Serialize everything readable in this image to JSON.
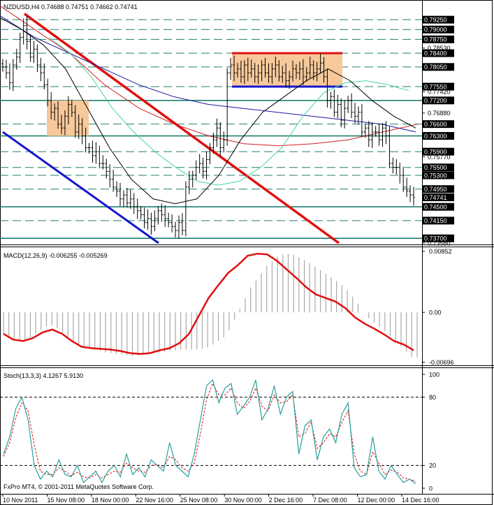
{
  "header": {
    "symbol_text": "NZDUSD,H4  0.74688 0.74751 0.74662 0.74741",
    "macd_text": "MACD(12,26,9) -0.006255 -0.005269",
    "stoch_text": "Stoch(13,3,3) 4.1267 5.9130",
    "watermark": "FxPro MT4, © 2001-2011 MetaQuotes Software Corp."
  },
  "colors": {
    "grid": "#1f7f6f",
    "candle": "#000000",
    "channel_red": "#e01010",
    "channel_blue": "#1515d0",
    "box_fill": "#f7c89a",
    "box_red": "#e01010",
    "box_blue": "#1515d0",
    "ma_black": "#000000",
    "ma_green": "#49d49a",
    "ma_red": "#cc2020",
    "ma_navy": "#1a1aa0",
    "macd_hist": "#a8a8a8",
    "macd_signal": "#e01010",
    "stoch_main": "#2a9fa0",
    "stoch_signal": "#e01010",
    "price_box_bg": "#000000",
    "current_price_bg": "#000000"
  },
  "chart_data": [
    {
      "type": "line",
      "x_ticks": [
        "10 Nov 2011",
        "15 Nov 08:00",
        "18 Nov 00:00",
        "22 Nov 16:00",
        "25 Nov 08:00",
        "30 Nov 00:00",
        "2 Dec 16:00",
        "7 Dec 08:00",
        "12 Dec 00:00",
        "14 Dec 16:00"
      ],
      "ylim": [
        0.7358,
        0.7943
      ],
      "level_lines": [
        0.7925,
        0.79,
        0.7875,
        0.784,
        0.7805,
        0.7755,
        0.772,
        0.766,
        0.763,
        0.759,
        0.755,
        0.753,
        0.7495,
        0.745,
        0.7415,
        0.737
      ],
      "level_labels": [
        "0.79250",
        "0.79000",
        "0.78750",
        "0.78400",
        "0.78050",
        "0.77550",
        "0.77200",
        "0.76600",
        "0.76300",
        "0.75900",
        "0.75500",
        "0.75300",
        "0.74950",
        "0.74500",
        "0.74150",
        "0.73700"
      ],
      "axis_labels": [
        "0.78530",
        "0.77420",
        "0.76880",
        "0.75770",
        "0.73580"
      ],
      "axis_values": [
        0.7853,
        0.7742,
        0.7688,
        0.7577,
        0.7358
      ],
      "thick_levels": [
        0.772,
        0.763,
        0.745,
        0.737
      ],
      "current_price": "0.74741",
      "current_value": 0.74741,
      "close": [
        0.7805,
        0.779,
        0.7765,
        0.781,
        0.783,
        0.788,
        0.791,
        0.787,
        0.783,
        0.785,
        0.781,
        0.779,
        0.776,
        0.772,
        0.769,
        0.77,
        0.766,
        0.765,
        0.768,
        0.771,
        0.769,
        0.764,
        0.766,
        0.763,
        0.76,
        0.76,
        0.758,
        0.759,
        0.756,
        0.756,
        0.754,
        0.752,
        0.75,
        0.749,
        0.747,
        0.748,
        0.746,
        0.747,
        0.745,
        0.744,
        0.743,
        0.741,
        0.742,
        0.74,
        0.742,
        0.744,
        0.743,
        0.742,
        0.741,
        0.74,
        0.739,
        0.741,
        0.739,
        0.75,
        0.752,
        0.753,
        0.755,
        0.756,
        0.754,
        0.757,
        0.76,
        0.762,
        0.765,
        0.76,
        0.762,
        0.779,
        0.781,
        0.779,
        0.78,
        0.778,
        0.781,
        0.779,
        0.78,
        0.778,
        0.779,
        0.781,
        0.779,
        0.778,
        0.78,
        0.781,
        0.778,
        0.779,
        0.777,
        0.778,
        0.78,
        0.779,
        0.78,
        0.778,
        0.779,
        0.781,
        0.779,
        0.78,
        0.7815,
        0.778,
        0.772,
        0.773,
        0.769,
        0.771,
        0.767,
        0.77,
        0.772,
        0.769,
        0.768,
        0.769,
        0.764,
        0.765,
        0.762,
        0.764,
        0.764,
        0.762,
        0.765,
        0.763,
        0.756,
        0.755,
        0.755,
        0.753,
        0.75,
        0.749,
        0.748,
        0.7474
      ],
      "ma_black": [
        0.793,
        0.79,
        0.786,
        0.78,
        0.77,
        0.76,
        0.752,
        0.747,
        0.7458,
        0.747,
        0.753,
        0.762,
        0.769,
        0.773,
        0.777,
        0.78,
        0.777,
        0.772,
        0.768,
        0.765
      ],
      "ma_green": [
        0.788,
        0.784,
        0.778,
        0.77,
        0.764,
        0.759,
        0.755,
        0.7515,
        0.7505,
        0.7515,
        0.755,
        0.76,
        0.768,
        0.774,
        0.7765,
        0.777,
        0.776,
        0.7745
      ],
      "ma_red": [
        0.796,
        0.79,
        0.784,
        0.776,
        0.77,
        0.766,
        0.763,
        0.761,
        0.7605,
        0.761,
        0.762,
        0.764,
        0.766
      ],
      "ma_navy": [
        0.7935,
        0.788,
        0.784,
        0.78,
        0.776,
        0.773,
        0.771,
        0.77,
        0.769,
        0.768,
        0.767,
        0.766,
        0.764
      ]
    },
    {
      "type": "bar",
      "title": "MACD(12,26,9)",
      "ylim": [
        -0.0072,
        0.0089
      ],
      "tick_labels": [
        "0.00852",
        "0.00",
        "-0.00696"
      ],
      "tick_values": [
        0.00852,
        0.0,
        -0.00696
      ],
      "histogram": [
        -0.003,
        -0.0035,
        -0.0038,
        -0.004,
        -0.0038,
        -0.0035,
        -0.003,
        -0.0025,
        -0.002,
        -0.0018,
        -0.0022,
        -0.0028,
        -0.0035,
        -0.004,
        -0.0045,
        -0.0048,
        -0.005,
        -0.0052,
        -0.0054,
        -0.0056,
        -0.0057,
        -0.0058,
        -0.0059,
        -0.006,
        -0.0061,
        -0.006,
        -0.0059,
        -0.0058,
        -0.0057,
        -0.0056,
        -0.0055,
        -0.0054,
        -0.0053,
        -0.0052,
        -0.0052,
        -0.0052,
        -0.0052,
        -0.0051,
        -0.0049,
        -0.0045,
        -0.004,
        -0.0035,
        -0.0025,
        -0.001,
        0.0005,
        0.002,
        0.0035,
        0.0045,
        0.0055,
        0.0065,
        0.0072,
        0.0078,
        0.0081,
        0.0082,
        0.008,
        0.0077,
        0.0073,
        0.0069,
        0.0064,
        0.0059,
        0.0054,
        0.0049,
        0.0044,
        0.0038,
        0.0031,
        0.0022,
        0.0012,
        0.0,
        -0.0008,
        -0.0014,
        -0.002,
        -0.0026,
        -0.0033,
        -0.004,
        -0.0048,
        -0.0055,
        -0.0062,
        -0.0063
      ],
      "signal": [
        -0.003,
        -0.0038,
        -0.004,
        -0.0036,
        -0.0028,
        -0.0024,
        -0.003,
        -0.004,
        -0.0048,
        -0.005,
        -0.0051,
        -0.0052,
        -0.0054,
        -0.0057,
        -0.0058,
        -0.0057,
        -0.0053,
        -0.005,
        -0.0043,
        -0.003,
        -0.0005,
        0.002,
        0.0038,
        0.0055,
        0.0066,
        0.0079,
        0.0082,
        0.0081,
        0.0072,
        0.006,
        0.0048,
        0.0035,
        0.0025,
        0.002,
        0.0015,
        0.0006,
        -0.0007,
        -0.0016,
        -0.0023,
        -0.0031,
        -0.004,
        -0.0045,
        -0.0053
      ]
    },
    {
      "type": "line",
      "title": "Stoch(13,3,3)",
      "ylim": [
        0,
        100
      ],
      "tick_labels": [
        "100",
        "80",
        "20",
        "0"
      ],
      "tick_values": [
        100,
        80,
        20,
        0
      ],
      "level_lines": [
        80,
        20
      ],
      "main": [
        30,
        45,
        70,
        80,
        60,
        20,
        8,
        15,
        10,
        25,
        12,
        10,
        20,
        5,
        10,
        15,
        5,
        15,
        20,
        10,
        30,
        12,
        18,
        10,
        25,
        20,
        15,
        40,
        20,
        15,
        10,
        30,
        60,
        90,
        95,
        75,
        88,
        92,
        65,
        72,
        80,
        95,
        60,
        70,
        90,
        65,
        80,
        85,
        30,
        55,
        60,
        25,
        45,
        52,
        40,
        65,
        75,
        18,
        10,
        12,
        45,
        15,
        8,
        20,
        12,
        5,
        8,
        4
      ],
      "signal": [
        28,
        40,
        62,
        75,
        68,
        38,
        15,
        12,
        12,
        18,
        15,
        11,
        14,
        10,
        9,
        12,
        9,
        12,
        15,
        14,
        22,
        18,
        15,
        14,
        20,
        21,
        18,
        28,
        25,
        18,
        15,
        22,
        48,
        78,
        92,
        82,
        82,
        88,
        75,
        70,
        76,
        88,
        72,
        68,
        82,
        75,
        76,
        82,
        45,
        48,
        58,
        35,
        40,
        48,
        45,
        58,
        68,
        30,
        15,
        12,
        32,
        22,
        12,
        16,
        14,
        9,
        8,
        6
      ]
    }
  ]
}
